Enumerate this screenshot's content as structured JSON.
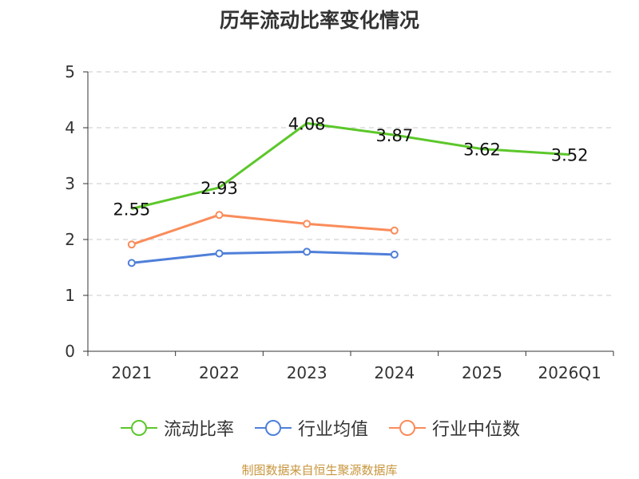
{
  "chart_data": {
    "type": "line",
    "title": "历年流动比率变化情况",
    "categories": [
      "2021",
      "2022",
      "2023",
      "2024",
      "2025",
      "2026Q1"
    ],
    "ylim": [
      0,
      5
    ],
    "yticks": [
      "0",
      "1",
      "2",
      "3",
      "4",
      "5"
    ],
    "grid": true,
    "legend_position": "bottom",
    "series": [
      {
        "name": "流动比率",
        "color": "#5cc72a",
        "values": [
          2.55,
          2.93,
          4.08,
          3.87,
          3.62,
          3.52
        ],
        "labels": [
          "2.55",
          "2.93",
          "4.08",
          "3.87",
          "3.62",
          "3.52"
        ],
        "show_labels": true,
        "show_markers": false
      },
      {
        "name": "行业均值",
        "color": "#4f7fd9",
        "values": [
          1.58,
          1.75,
          1.78,
          1.73,
          null,
          null
        ],
        "show_labels": false,
        "show_markers": true
      },
      {
        "name": "行业中位数",
        "color": "#fa8c5a",
        "values": [
          1.91,
          2.44,
          2.28,
          2.16,
          null,
          null
        ],
        "show_labels": false,
        "show_markers": true
      }
    ]
  },
  "footer": {
    "source": "制图数据来自恒生聚源数据库"
  }
}
